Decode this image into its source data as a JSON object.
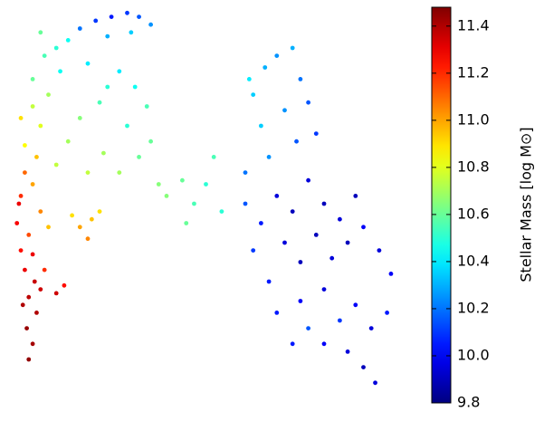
{
  "chart_data": {
    "type": "scatter",
    "colormap": "jet",
    "colorbar_label": "Stellar Mass [log M⊙]",
    "xlim": [
      0,
      100
    ],
    "ylim": [
      0,
      100
    ],
    "clim": [
      9.8,
      11.48
    ],
    "cticks": [
      9.8,
      {
        "value": 10,
        "label": "10.0"
      },
      10.2,
      10.4,
      10.6,
      10.8,
      {
        "value": 11,
        "label": "11.0"
      },
      11.2,
      11.4
    ],
    "x": [
      5,
      6,
      4.5,
      7,
      5,
      6.5,
      4,
      8,
      3.5,
      6,
      3,
      9,
      12,
      14,
      2,
      3,
      5,
      4,
      8,
      6,
      2.5,
      10,
      7,
      18,
      21,
      20,
      23,
      16,
      4,
      8,
      12,
      15,
      20,
      24,
      6,
      10,
      3,
      18,
      6,
      9,
      13,
      8,
      12,
      15,
      20,
      25,
      28,
      23,
      18,
      22,
      26,
      30,
      33,
      36,
      25,
      31,
      30,
      33,
      35,
      32,
      38,
      28,
      36,
      40,
      44,
      47,
      50,
      52,
      45,
      54,
      62,
      65,
      68,
      72,
      74,
      64,
      70,
      76,
      66,
      73,
      78,
      61,
      60,
      64,
      68,
      72,
      76,
      80,
      84,
      88,
      62,
      66,
      70,
      74,
      78,
      82,
      86,
      90,
      94,
      97,
      68,
      74,
      80,
      84,
      88,
      92,
      86,
      90,
      93,
      80,
      76,
      72,
      96,
      60
    ],
    "y": [
      10,
      14,
      18,
      22,
      26,
      30,
      33,
      28,
      24,
      37,
      38,
      33,
      27,
      29,
      45,
      52,
      42,
      58,
      48,
      55,
      50,
      44,
      62,
      44,
      46,
      41,
      48,
      47,
      65,
      70,
      60,
      66,
      58,
      63,
      75,
      78,
      72,
      72,
      82,
      88,
      84,
      94,
      90,
      92,
      86,
      80,
      84,
      76,
      95,
      97,
      98,
      99,
      98,
      96,
      93,
      94,
      70,
      62,
      75,
      80,
      55,
      58,
      66,
      52,
      56,
      50,
      55,
      62,
      45,
      48,
      78,
      85,
      88,
      90,
      82,
      70,
      74,
      76,
      62,
      66,
      68,
      82,
      50,
      45,
      52,
      48,
      56,
      50,
      46,
      52,
      38,
      30,
      40,
      35,
      42,
      36,
      40,
      44,
      38,
      32,
      22,
      25,
      28,
      20,
      24,
      18,
      12,
      8,
      4,
      14,
      18,
      14,
      22,
      58
    ],
    "values": [
      11.45,
      11.42,
      11.44,
      11.4,
      11.38,
      11.36,
      11.3,
      11.35,
      11.4,
      11.3,
      11.25,
      11.2,
      11.35,
      11.25,
      11.28,
      11.2,
      11.15,
      11.1,
      11.05,
      11.0,
      11.3,
      10.95,
      10.95,
      11.0,
      10.95,
      11.05,
      10.9,
      10.9,
      10.85,
      10.8,
      10.75,
      10.7,
      10.75,
      10.7,
      10.75,
      10.7,
      10.9,
      10.65,
      10.6,
      10.55,
      10.45,
      10.6,
      10.5,
      10.45,
      10.4,
      10.5,
      10.4,
      10.55,
      10.2,
      10.1,
      10.05,
      10.1,
      10.15,
      10.25,
      10.3,
      10.35,
      10.5,
      10.6,
      10.55,
      10.45,
      10.65,
      10.7,
      10.6,
      10.65,
      10.6,
      10.55,
      10.5,
      10.55,
      10.6,
      10.5,
      10.35,
      10.3,
      10.25,
      10.3,
      10.2,
      10.35,
      10.25,
      10.15,
      10.25,
      10.15,
      10.1,
      10.4,
      10.15,
      10.05,
      9.95,
      9.9,
      9.95,
      9.9,
      9.95,
      9.9,
      10.1,
      10.05,
      9.95,
      9.9,
      9.9,
      9.95,
      9.9,
      10.0,
      9.95,
      10.0,
      10.05,
      10.0,
      9.95,
      10.1,
      10.0,
      9.95,
      9.95,
      9.9,
      9.95,
      10.0,
      10.15,
      10.05,
      10.05,
      10.2
    ]
  }
}
